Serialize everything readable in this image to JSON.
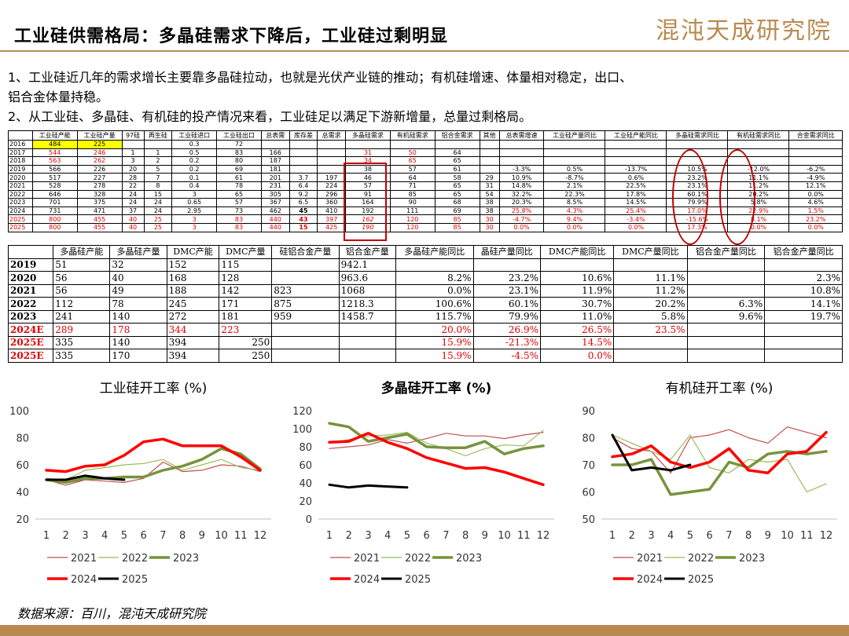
{
  "header": {
    "title": "工业硅供需格局：多晶硅需求下降后，工业硅过剩明显",
    "logo": "混沌天成研究院"
  },
  "paragraphs": [
    "1、工业硅近几年的需求增长主要靠多晶硅拉动，也就是光伏产业链的推动；有机硅增速、体量相对稳定，出口、",
    "铝合金体量持稳。",
    "2、从工业硅、多晶硅、有机硅的投产情况来看，工业硅足以满足下游新增量，总量过剩格局。"
  ],
  "table1": {
    "headers": [
      "",
      "工业硅产能",
      "工业硅产量",
      "97硅",
      "再生硅",
      "工业硅进口",
      "工业硅出口",
      "总表需",
      "库存差",
      "总需求",
      "多晶硅需求",
      "有机硅需求",
      "铝合金需求",
      "其他",
      "总表需增速",
      "工业硅产量同比",
      "工业硅产能同比",
      "多晶硅需求同比",
      "有机硅需求同比",
      "合金需求同比"
    ],
    "rows": [
      {
        "cells": [
          "2016",
          "484",
          "225",
          "",
          "",
          "0.3",
          "72",
          "",
          "",
          "",
          "",
          "",
          "",
          "",
          "",
          "",
          "",
          "",
          "",
          ""
        ],
        "red": false
      },
      {
        "cells": [
          "2017",
          "544",
          "246",
          "1",
          "1",
          "0.5",
          "83",
          "166",
          "",
          "",
          "31",
          "50",
          "64",
          "",
          "",
          "",
          "",
          "",
          "",
          ""
        ],
        "red": false
      },
      {
        "cells": [
          "2018",
          "563",
          "262",
          "3",
          "2",
          "0.2",
          "80",
          "187",
          "",
          "",
          "34",
          "65",
          "65",
          "",
          "",
          "",
          "",
          "",
          "",
          ""
        ],
        "red": false
      },
      {
        "cells": [
          "2019",
          "566",
          "226",
          "20",
          "5",
          "0.2",
          "69",
          "181",
          "",
          "",
          "38",
          "57",
          "61",
          "",
          "-3.3%",
          "0.5%",
          "-13.7%",
          "10.5%",
          "-12.0%",
          "-6.2%"
        ],
        "red": false
      },
      {
        "cells": [
          "2020",
          "517",
          "227",
          "28",
          "7",
          "0.1",
          "61",
          "201",
          "3.7",
          "197",
          "46",
          "64",
          "58",
          "29",
          "10.9%",
          "-8.7%",
          "0.6%",
          "23.2%",
          "11.1%",
          "-4.9%"
        ],
        "red": false
      },
      {
        "cells": [
          "2021",
          "528",
          "278",
          "22",
          "8",
          "0.4",
          "78",
          "231",
          "6.4",
          "224",
          "57",
          "71",
          "65",
          "31",
          "14.8%",
          "2.1%",
          "22.5%",
          "23.1%",
          "11.2%",
          "12.1%"
        ],
        "red": false
      },
      {
        "cells": [
          "2022",
          "646",
          "328",
          "24",
          "15",
          "3",
          "65",
          "305",
          "9.2",
          "296",
          "91",
          "85",
          "65",
          "54",
          "32.2%",
          "22.3%",
          "17.8%",
          "60.1%",
          "20.2%",
          "0.0%"
        ],
        "red": false
      },
      {
        "cells": [
          "2023",
          "701",
          "375",
          "24",
          "24",
          "0.65",
          "57",
          "367",
          "6.5",
          "360",
          "164",
          "90",
          "68",
          "38",
          "20.3%",
          "8.5%",
          "14.5%",
          "79.9%",
          "5.8%",
          "4.6%"
        ],
        "red": false
      },
      {
        "cells": [
          "2024",
          "731",
          "471",
          "37",
          "24",
          "2.95",
          "73",
          "462",
          "45",
          "410",
          "192",
          "111",
          "69",
          "38",
          "25.8%",
          "4.3%",
          "25.4%",
          "17.0%",
          "22.9%",
          "1.5%"
        ],
        "red": false
      },
      {
        "cells": [
          "2025",
          "800",
          "455",
          "40",
          "25",
          "3",
          "83",
          "440",
          "43",
          "397",
          "162",
          "120",
          "85",
          "30",
          "-4.7%",
          "9.4%",
          "-3.4%",
          "-15.6%",
          "8.1%",
          "23.2%"
        ],
        "red": true
      },
      {
        "cells": [
          "2025",
          "800",
          "455",
          "40",
          "25",
          "3",
          "83",
          "440",
          "15",
          "425",
          "190",
          "120",
          "85",
          "30",
          "0.0%",
          "0.0%",
          "0.0%",
          "17.3%",
          "0.0%",
          "0.0%"
        ],
        "red": true
      }
    ]
  },
  "table2": {
    "headers": [
      "",
      "多晶硅产能",
      "多晶硅产量",
      "DMC产能",
      "DMC产量",
      "硅铝合金产量",
      "铝合金产量",
      "多晶硅产能同比",
      "晶硅产量同比",
      "DMC产能同比",
      "DMC产量同比",
      "铝合金产量同比",
      "铝合金产量同比"
    ],
    "rows": [
      {
        "cells": [
          "2019",
          "51",
          "32",
          "152",
          "115",
          "",
          "942.1",
          "",
          "",
          "",
          "",
          "",
          ""
        ],
        "red": false
      },
      {
        "cells": [
          "2020",
          "56",
          "40",
          "168",
          "128",
          "",
          "963.6",
          "8.2%",
          "23.2%",
          "10.6%",
          "11.1%",
          "",
          "2.3%"
        ],
        "red": false
      },
      {
        "cells": [
          "2021",
          "56",
          "49",
          "188",
          "142",
          "823",
          "1068",
          "0.0%",
          "23.1%",
          "11.9%",
          "11.2%",
          "",
          "10.8%"
        ],
        "red": false
      },
      {
        "cells": [
          "2022",
          "112",
          "78",
          "245",
          "171",
          "875",
          "1218.3",
          "100.6%",
          "60.1%",
          "30.7%",
          "20.2%",
          "6.3%",
          "14.1%"
        ],
        "red": false
      },
      {
        "cells": [
          "2023",
          "241",
          "140",
          "272",
          "181",
          "959",
          "1458.7",
          "115.7%",
          "79.9%",
          "11.0%",
          "5.8%",
          "9.6%",
          "19.7%"
        ],
        "red": false
      },
      {
        "cells": [
          "2024E",
          "289",
          "178",
          "344",
          "223",
          "",
          "",
          "20.0%",
          "26.9%",
          "26.5%",
          "23.5%",
          "",
          ""
        ],
        "red": true
      },
      {
        "cells": [
          "2025E",
          "335",
          "140",
          "394",
          "250",
          "",
          "",
          "15.9%",
          "-21.3%",
          "14.5%",
          "",
          "",
          ""
        ],
        "red": false
      },
      {
        "cells": [
          "2025E",
          "335",
          "170",
          "394",
          "250",
          "",
          "",
          "15.9%",
          "-4.5%",
          "0.0%",
          "",
          "",
          ""
        ],
        "red": false
      }
    ]
  },
  "chart_data": [
    {
      "type": "line",
      "title": "工业硅开工率 (%)",
      "ylim": [
        20,
        100
      ],
      "yticks": [
        20,
        40,
        60,
        80,
        100
      ],
      "categories": [
        "1",
        "2",
        "3",
        "4",
        "5",
        "6",
        "7",
        "8",
        "9",
        "10",
        "11",
        "12"
      ],
      "series": [
        {
          "name": "2021",
          "color": "#c0504d",
          "width": 1.2,
          "values": [
            49,
            45,
            49,
            48,
            47,
            50,
            62,
            55,
            56,
            60,
            59,
            55
          ]
        },
        {
          "name": "2022",
          "color": "#9bbb59",
          "width": 1.2,
          "values": [
            50,
            49,
            56,
            58,
            60,
            61,
            64,
            56,
            60,
            64,
            58,
            56
          ]
        },
        {
          "name": "2023",
          "color": "#77933c",
          "width": 3.5,
          "values": [
            49,
            47,
            50,
            50,
            51,
            51,
            56,
            59,
            64,
            72,
            68,
            57
          ]
        },
        {
          "name": "2024",
          "color": "#ff0000",
          "width": 3.5,
          "values": [
            56,
            55,
            59,
            60,
            67,
            77,
            79,
            74,
            74,
            74,
            66,
            56
          ]
        },
        {
          "name": "2025",
          "color": "#000000",
          "width": 3,
          "values": [
            49,
            49,
            52,
            50,
            49,
            null,
            null,
            null,
            null,
            null,
            null,
            null
          ]
        }
      ]
    },
    {
      "type": "line",
      "title": "多晶硅开工率 (%)",
      "ylim": [
        0,
        120
      ],
      "yticks": [
        0,
        20,
        40,
        60,
        80,
        100,
        120
      ],
      "categories": [
        "1",
        "2",
        "3",
        "4",
        "5",
        "6",
        "7",
        "8",
        "9",
        "10",
        "11",
        "12"
      ],
      "series": [
        {
          "name": "2021",
          "color": "#c0504d",
          "width": 1.2,
          "values": [
            78,
            80,
            82,
            88,
            84,
            89,
            95,
            92,
            92,
            89,
            93,
            96
          ]
        },
        {
          "name": "2022",
          "color": "#9bbb59",
          "width": 1.2,
          "values": [
            84,
            88,
            92,
            93,
            96,
            84,
            78,
            70,
            78,
            82,
            81,
            98
          ]
        },
        {
          "name": "2023",
          "color": "#77933c",
          "width": 3.5,
          "values": [
            106,
            102,
            86,
            90,
            94,
            80,
            79,
            79,
            86,
            72,
            78,
            81
          ]
        },
        {
          "name": "2024",
          "color": "#ff0000",
          "width": 3.5,
          "values": [
            85,
            86,
            95,
            85,
            78,
            68,
            62,
            56,
            57,
            52,
            45,
            38
          ]
        },
        {
          "name": "2025",
          "color": "#000000",
          "width": 3,
          "values": [
            38,
            35,
            37,
            36,
            35,
            null,
            null,
            null,
            null,
            null,
            null,
            null
          ]
        }
      ]
    },
    {
      "type": "line",
      "title": "有机硅开工率 (%)",
      "ylim": [
        50,
        90
      ],
      "yticks": [
        50,
        60,
        70,
        80,
        90
      ],
      "categories": [
        "1",
        "2",
        "3",
        "4",
        "5",
        "6",
        "7",
        "8",
        "9",
        "10",
        "11",
        "12"
      ],
      "series": [
        {
          "name": "2021",
          "color": "#c0504d",
          "width": 1.2,
          "values": [
            80,
            76,
            75,
            67,
            80,
            81,
            83,
            80,
            78,
            84,
            82,
            80
          ]
        },
        {
          "name": "2022",
          "color": "#9bbb59",
          "width": 1.2,
          "values": [
            81,
            78,
            75,
            72,
            81,
            69,
            67,
            72,
            71,
            72,
            60,
            63
          ]
        },
        {
          "name": "2023",
          "color": "#77933c",
          "width": 3.5,
          "values": [
            70,
            70,
            72,
            59,
            60,
            61,
            71,
            69,
            74,
            75,
            74,
            75
          ]
        },
        {
          "name": "2024",
          "color": "#ff0000",
          "width": 3.5,
          "values": [
            73,
            74,
            77,
            71,
            69,
            71,
            76,
            68,
            67,
            74,
            75,
            82
          ]
        },
        {
          "name": "2025",
          "color": "#000000",
          "width": 3,
          "values": [
            81,
            68,
            69,
            68,
            70,
            null,
            null,
            null,
            null,
            null,
            null,
            null
          ]
        }
      ]
    }
  ],
  "footer": {
    "source": "数据来源：百川，混沌天成研究院"
  }
}
